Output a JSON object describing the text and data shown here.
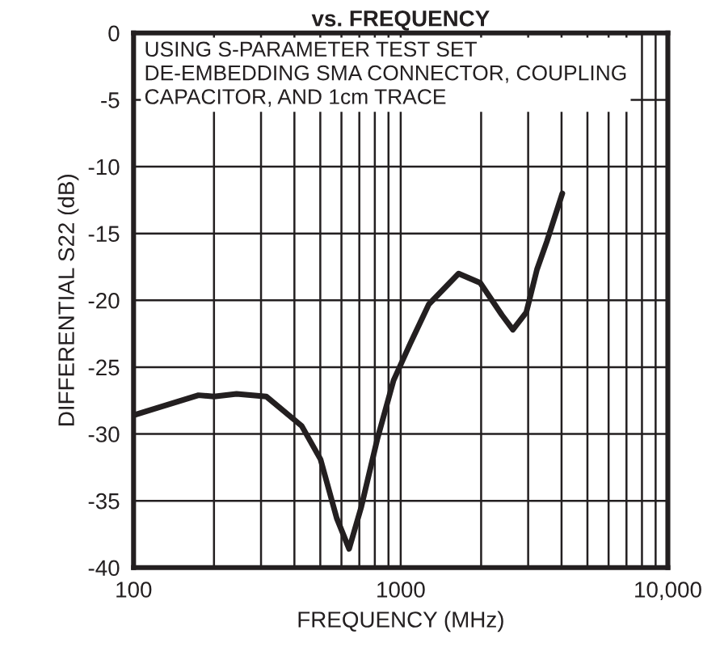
{
  "chart_data": {
    "type": "line",
    "title": "vs. FREQUENCY",
    "xlabel": "FREQUENCY (MHz)",
    "ylabel": "DIFFERENTIAL S22 (dB)",
    "annotations": [
      "USING S-PARAMETER TEST SET",
      "DE-EMBEDDING SMA CONNECTOR, COUPLING\nCAPACITOR, AND 1cm TRACE"
    ],
    "log": "x",
    "grid": true,
    "marker": "none",
    "line_style": "solid",
    "xlim": [
      100,
      10000
    ],
    "ylim": [
      -40,
      0
    ],
    "xticks": [
      100,
      {
        "value": 200,
        "label": null
      },
      {
        "value": 300,
        "label": null
      },
      {
        "value": 400,
        "label": null
      },
      {
        "value": 500,
        "label": null
      },
      {
        "value": 600,
        "label": null
      },
      {
        "value": 700,
        "label": null
      },
      {
        "value": 800,
        "label": null
      },
      {
        "value": 900,
        "label": null
      },
      1000,
      {
        "value": 2000,
        "label": null
      },
      {
        "value": 3000,
        "label": null
      },
      {
        "value": 4000,
        "label": null
      },
      {
        "value": 5000,
        "label": null
      },
      {
        "value": 6000,
        "label": null
      },
      {
        "value": 7000,
        "label": null
      },
      {
        "value": 8000,
        "label": null
      },
      {
        "value": 9000,
        "label": null
      },
      {
        "value": 10000,
        "label": "10,000"
      }
    ],
    "yticks": [
      -40,
      -35,
      -30,
      -25,
      -20,
      -15,
      -10,
      -5,
      0
    ],
    "series": [
      {
        "color": "#231f20",
        "x": [
          100,
          175,
          200,
          243,
          314,
          426,
          501,
          576,
          641,
          711,
          817,
          940,
          1082,
          1274,
          1647,
          1985,
          2393,
          2630,
          2952,
          3236,
          3524,
          4027
        ],
        "values": [
          -28.6,
          -27.1,
          -27.2,
          -27.0,
          -27.2,
          -29.4,
          -31.9,
          -36.3,
          -38.6,
          -35.5,
          -30.4,
          -26.0,
          -23.3,
          -20.3,
          -18.0,
          -18.7,
          -21.1,
          -22.2,
          -20.9,
          -17.7,
          -15.6,
          -12.0
        ]
      }
    ]
  }
}
